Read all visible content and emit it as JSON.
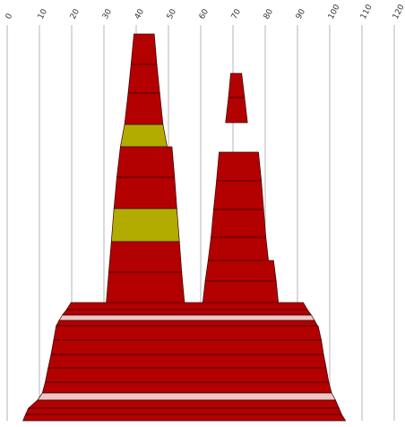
{
  "chart_data": {
    "type": "area",
    "title": "",
    "xlabel": "",
    "ylabel": "",
    "xlim": [
      0,
      120
    ],
    "x_ticks": [
      "0",
      "10",
      "20",
      "30",
      "40",
      "50",
      "60",
      "70",
      "80",
      "90",
      "100",
      "110",
      "120"
    ],
    "grid": "vertical",
    "legend": "none",
    "colors": {
      "primary": "#b30000",
      "highlight": "#b2ab00",
      "light": "#efc6c6"
    },
    "shapes": [
      {
        "name": "",
        "bands": [
          {
            "left": [
              39.3,
              38.4
            ],
            "right": [
              45.6,
              46.4
            ],
            "color": "primary"
          },
          {
            "left": [
              38.4,
              37.5
            ],
            "right": [
              46.4,
              47.3
            ],
            "color": "primary"
          },
          {
            "left": [
              37.5,
              36.4
            ],
            "right": [
              47.3,
              48.3
            ],
            "color": "primary"
          },
          {
            "left": [
              36.4,
              35.1
            ],
            "right": [
              48.3,
              49.6
            ],
            "color": "highlight"
          },
          {
            "left": [
              35.1,
              34.0
            ],
            "right": [
              51.1,
              51.9
            ],
            "color": "primary"
          },
          {
            "left": [
              34.0,
              33.1
            ],
            "right": [
              51.9,
              52.6
            ],
            "color": "primary"
          },
          {
            "left": [
              33.1,
              32.3
            ],
            "right": [
              52.6,
              53.4
            ],
            "color": "highlight"
          },
          {
            "left": [
              32.3,
              31.5
            ],
            "right": [
              53.4,
              54.1
            ],
            "color": "primary"
          },
          {
            "left": [
              31.5,
              30.7
            ],
            "right": [
              54.1,
              55.0
            ],
            "color": "primary"
          }
        ]
      },
      {
        "name": "",
        "bands": [
          {
            "left": [
              69.3,
              68.6
            ],
            "right": [
              72.7,
              73.6
            ],
            "color": "primary"
          },
          {
            "left": [
              68.6,
              67.7
            ],
            "right": [
              73.6,
              74.5
            ],
            "color": "primary"
          },
          {
            "left": [
              65.7,
              64.9
            ],
            "right": [
              77.9,
              78.8
            ],
            "color": "primary"
          },
          {
            "left": [
              64.9,
              64.0
            ],
            "right": [
              78.8,
              79.5
            ],
            "color": "primary"
          },
          {
            "left": [
              64.0,
              63.2
            ],
            "right": [
              79.5,
              80.2
            ],
            "color": "primary"
          },
          {
            "left": [
              63.2,
              62.3
            ],
            "right": [
              80.2,
              81.0
            ],
            "color": "primary"
          },
          {
            "left": [
              62.3,
              61.4
            ],
            "right": [
              82.6,
              83.4
            ],
            "color": "primary"
          },
          {
            "left": [
              61.4,
              60.6
            ],
            "right": [
              83.4,
              84.1
            ],
            "color": "primary"
          }
        ]
      },
      {
        "name": "",
        "bands": [
          {
            "left": [
              19.8,
              18.4
            ],
            "right": [
              91.8,
              93.1
            ],
            "color": "primary"
          },
          {
            "left": [
              18.4,
              17.1
            ],
            "right": [
              93.1,
              94.3
            ],
            "color": "primary"
          },
          {
            "left": [
              17.1,
              16.1
            ],
            "right": [
              94.3,
              95.3
            ],
            "color": "light"
          },
          {
            "left": [
              16.1,
              15.2
            ],
            "right": [
              95.3,
              96.2
            ],
            "color": "primary"
          },
          {
            "left": [
              15.2,
              14.4
            ],
            "right": [
              96.4,
              97.4
            ],
            "color": "primary"
          },
          {
            "left": [
              14.4,
              13.6
            ],
            "right": [
              97.4,
              98.1
            ],
            "color": "primary"
          },
          {
            "left": [
              13.6,
              12.7
            ],
            "right": [
              98.1,
              98.9
            ],
            "color": "primary"
          },
          {
            "left": [
              12.7,
              11.8
            ],
            "right": [
              98.9,
              99.7
            ],
            "color": "primary"
          },
          {
            "left": [
              11.8,
              10.9
            ],
            "right": [
              99.7,
              100.6
            ],
            "color": "primary"
          },
          {
            "left": [
              10.9,
              9.4
            ],
            "right": [
              100.6,
              101.8
            ],
            "color": "light"
          },
          {
            "left": [
              9.4,
              6.6
            ],
            "right": [
              101.8,
              102.9
            ],
            "color": "primary"
          },
          {
            "left": [
              6.6,
              5.7
            ],
            "right": [
              102.9,
              103.7
            ],
            "color": "primary"
          },
          {
            "left": [
              5.7,
              4.9
            ],
            "right": [
              103.7,
              104.9
            ],
            "color": "primary"
          }
        ]
      }
    ]
  }
}
